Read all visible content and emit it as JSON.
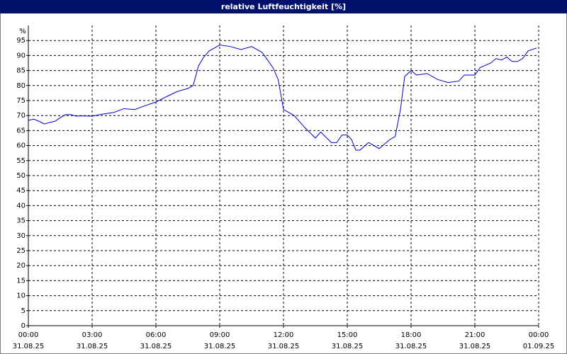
{
  "chart_data": {
    "type": "line",
    "title": "relative Luftfeuchtigkeit [%]",
    "ylabel": "%",
    "ylim": [
      0,
      100
    ],
    "yticks": [
      0,
      5,
      10,
      15,
      20,
      25,
      30,
      35,
      40,
      45,
      50,
      55,
      60,
      65,
      70,
      75,
      80,
      85,
      90,
      95
    ],
    "xlim": [
      0,
      24
    ],
    "xticks": [
      {
        "value": 0,
        "label": "00:00"
      },
      {
        "value": 3,
        "label": "03:00"
      },
      {
        "value": 6,
        "label": "06:00"
      },
      {
        "value": 9,
        "label": "09:00"
      },
      {
        "value": 12,
        "label": "12:00"
      },
      {
        "value": 15,
        "label": "15:00"
      },
      {
        "value": 18,
        "label": "18:00"
      },
      {
        "value": 21,
        "label": "21:00"
      },
      {
        "value": 24,
        "label": "00:00"
      }
    ],
    "xtick_dates": [
      "31.08.25",
      "31.08.25",
      "31.08.25",
      "31.08.25",
      "31.08.25",
      "31.08.25",
      "31.08.25",
      "31.08.25",
      "01.09.25"
    ],
    "grid": true,
    "series": [
      {
        "name": "relative Luftfeuchtigkeit",
        "color": "#0000c8",
        "x": [
          0,
          0.25,
          0.5,
          0.75,
          1,
          1.25,
          1.5,
          1.75,
          2,
          2.25,
          2.5,
          3,
          3.5,
          4,
          4.5,
          5,
          5.5,
          6,
          6.5,
          7,
          7.5,
          7.75,
          8,
          8.25,
          8.5,
          8.75,
          9,
          9.5,
          10,
          10.5,
          11,
          11.5,
          11.75,
          12,
          12.5,
          13,
          13.5,
          13.75,
          14.25,
          14.5,
          14.75,
          15,
          15.2,
          15.4,
          15.6,
          16,
          16.5,
          17,
          17.25,
          17.5,
          17.7,
          18,
          18.25,
          18.75,
          19.25,
          19.75,
          20.25,
          20.5,
          21,
          21.25,
          21.75,
          22,
          22.25,
          22.5,
          22.75,
          23,
          23.25,
          23.5,
          23.9
        ],
        "values": [
          68.4,
          68.8,
          68.1,
          67.2,
          67.7,
          68.1,
          69.3,
          70.3,
          70.3,
          69.8,
          69.9,
          69.8,
          70.5,
          71.0,
          72.3,
          72.0,
          73.3,
          74.5,
          76.3,
          78.0,
          79.0,
          80.0,
          86.5,
          89.5,
          91.5,
          92.5,
          93.5,
          93.0,
          92.0,
          93.0,
          91.0,
          86.0,
          82.0,
          72.0,
          70.0,
          66.0,
          62.5,
          64.5,
          61.0,
          61.0,
          63.5,
          63.5,
          62.0,
          58.5,
          58.5,
          61.0,
          59.0,
          62.0,
          63.0,
          72.0,
          83.0,
          85.0,
          83.5,
          84.0,
          82.0,
          81.0,
          81.5,
          83.5,
          83.5,
          86.0,
          87.5,
          89.0,
          88.5,
          89.5,
          88.0,
          88.0,
          89.0,
          91.5,
          92.5
        ]
      }
    ]
  }
}
